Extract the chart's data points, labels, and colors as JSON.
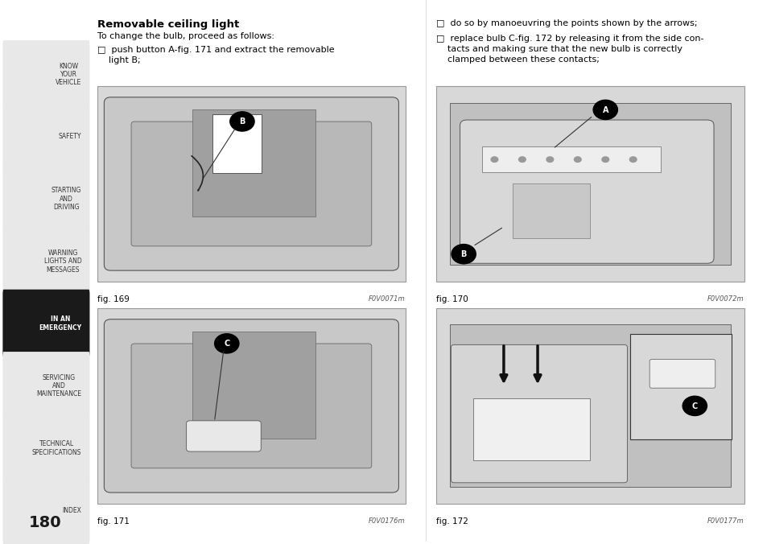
{
  "page_number": "180",
  "sidebar_bg": "#e8e8e8",
  "sidebar_active_bg": "#1a1a1a",
  "sidebar_active_text": "#ffffff",
  "sidebar_text": "#333333",
  "sidebar_items": [
    {
      "text": "KNOW\nYOUR\nVEHICLE",
      "active": false
    },
    {
      "text": "SAFETY",
      "active": false
    },
    {
      "text": "STARTING\nAND\nDRIVING",
      "active": false
    },
    {
      "text": "WARNING\nLIGHTS AND\nMESSAGES",
      "active": false
    },
    {
      "text": "IN AN\nEMERGENCY",
      "active": true
    },
    {
      "text": "SERVICING\nAND\nMAINTENANCE",
      "active": false
    },
    {
      "text": "TECHNICAL\nSPECIFICATIONS",
      "active": false
    },
    {
      "text": "INDEX",
      "active": false
    }
  ],
  "main_bg": "#ffffff",
  "title": "Removable ceiling light",
  "body_text_left_1": "To change the bulb, proceed as follows:",
  "body_text_left_2": "□  push button A-fig. 171 and extract the removable\n    light B;",
  "body_text_right_1": "□  do so by manoeuvring the points shown by the arrows;",
  "body_text_right_2": "□  replace bulb C-fig. 172 by releasing it from the side con-\n    tacts and making sure that the new bulb is correctly\n    clamped between these contacts;",
  "fig_labels": [
    "fig. 169",
    "fig. 170",
    "fig. 171",
    "fig. 172"
  ],
  "fig_codes": [
    "F0V0071m",
    "F0V0072m",
    "F0V0176m",
    "F0V0177m"
  ],
  "image_bg": "#d8d8d8",
  "border_color": "#999999"
}
